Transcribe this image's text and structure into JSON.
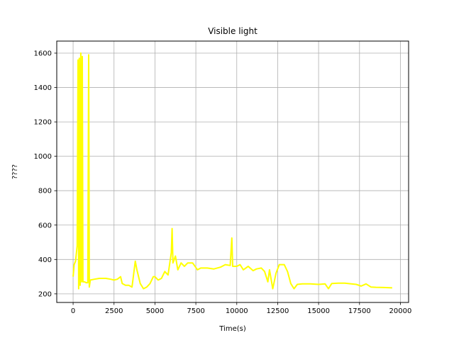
{
  "chart_data": {
    "type": "line",
    "title": "Visible light",
    "xlabel": "Time(s)",
    "ylabel": "????",
    "xlim": [
      -1000,
      20500
    ],
    "ylim": [
      150,
      1670
    ],
    "xticks": [
      0,
      2500,
      5000,
      7500,
      10000,
      12500,
      15000,
      17500,
      20000
    ],
    "yticks": [
      200,
      400,
      600,
      800,
      1000,
      1200,
      1400,
      1600
    ],
    "grid": true,
    "series": [
      {
        "color": "#ffff00",
        "points": [
          [
            0,
            300
          ],
          [
            60,
            370
          ],
          [
            150,
            390
          ],
          [
            250,
            480
          ],
          [
            300,
            1560
          ],
          [
            340,
            230
          ],
          [
            380,
            1570
          ],
          [
            430,
            250
          ],
          [
            470,
            1600
          ],
          [
            510,
            270
          ],
          [
            560,
            1580
          ],
          [
            600,
            270
          ],
          [
            700,
            270
          ],
          [
            800,
            265
          ],
          [
            900,
            265
          ],
          [
            950,
            1590
          ],
          [
            990,
            240
          ],
          [
            1050,
            280
          ],
          [
            1300,
            285
          ],
          [
            1600,
            290
          ],
          [
            2000,
            290
          ],
          [
            2300,
            285
          ],
          [
            2500,
            280
          ],
          [
            2700,
            285
          ],
          [
            2900,
            300
          ],
          [
            3000,
            260
          ],
          [
            3200,
            250
          ],
          [
            3400,
            250
          ],
          [
            3600,
            240
          ],
          [
            3800,
            390
          ],
          [
            3900,
            340
          ],
          [
            4100,
            260
          ],
          [
            4300,
            230
          ],
          [
            4500,
            240
          ],
          [
            4700,
            260
          ],
          [
            4900,
            300
          ],
          [
            5000,
            300
          ],
          [
            5200,
            280
          ],
          [
            5400,
            290
          ],
          [
            5600,
            330
          ],
          [
            5800,
            310
          ],
          [
            6000,
            440
          ],
          [
            6050,
            580
          ],
          [
            6100,
            380
          ],
          [
            6250,
            420
          ],
          [
            6400,
            340
          ],
          [
            6600,
            380
          ],
          [
            6800,
            360
          ],
          [
            7000,
            380
          ],
          [
            7300,
            380
          ],
          [
            7600,
            340
          ],
          [
            7800,
            350
          ],
          [
            8200,
            350
          ],
          [
            8600,
            345
          ],
          [
            9000,
            355
          ],
          [
            9300,
            370
          ],
          [
            9600,
            365
          ],
          [
            9700,
            525
          ],
          [
            9750,
            360
          ],
          [
            10000,
            360
          ],
          [
            10200,
            370
          ],
          [
            10400,
            340
          ],
          [
            10700,
            360
          ],
          [
            11000,
            335
          ],
          [
            11200,
            345
          ],
          [
            11500,
            350
          ],
          [
            11700,
            330
          ],
          [
            11900,
            270
          ],
          [
            12000,
            340
          ],
          [
            12200,
            230
          ],
          [
            12400,
            320
          ],
          [
            12600,
            370
          ],
          [
            12900,
            370
          ],
          [
            13100,
            330
          ],
          [
            13300,
            260
          ],
          [
            13500,
            230
          ],
          [
            13700,
            255
          ],
          [
            14000,
            258
          ],
          [
            14500,
            258
          ],
          [
            15000,
            255
          ],
          [
            15400,
            258
          ],
          [
            15600,
            230
          ],
          [
            15800,
            260
          ],
          [
            16200,
            262
          ],
          [
            16600,
            262
          ],
          [
            17000,
            258
          ],
          [
            17300,
            255
          ],
          [
            17600,
            245
          ],
          [
            17900,
            258
          ],
          [
            18200,
            240
          ],
          [
            18500,
            238
          ],
          [
            19000,
            237
          ],
          [
            19500,
            235
          ]
        ]
      }
    ]
  }
}
